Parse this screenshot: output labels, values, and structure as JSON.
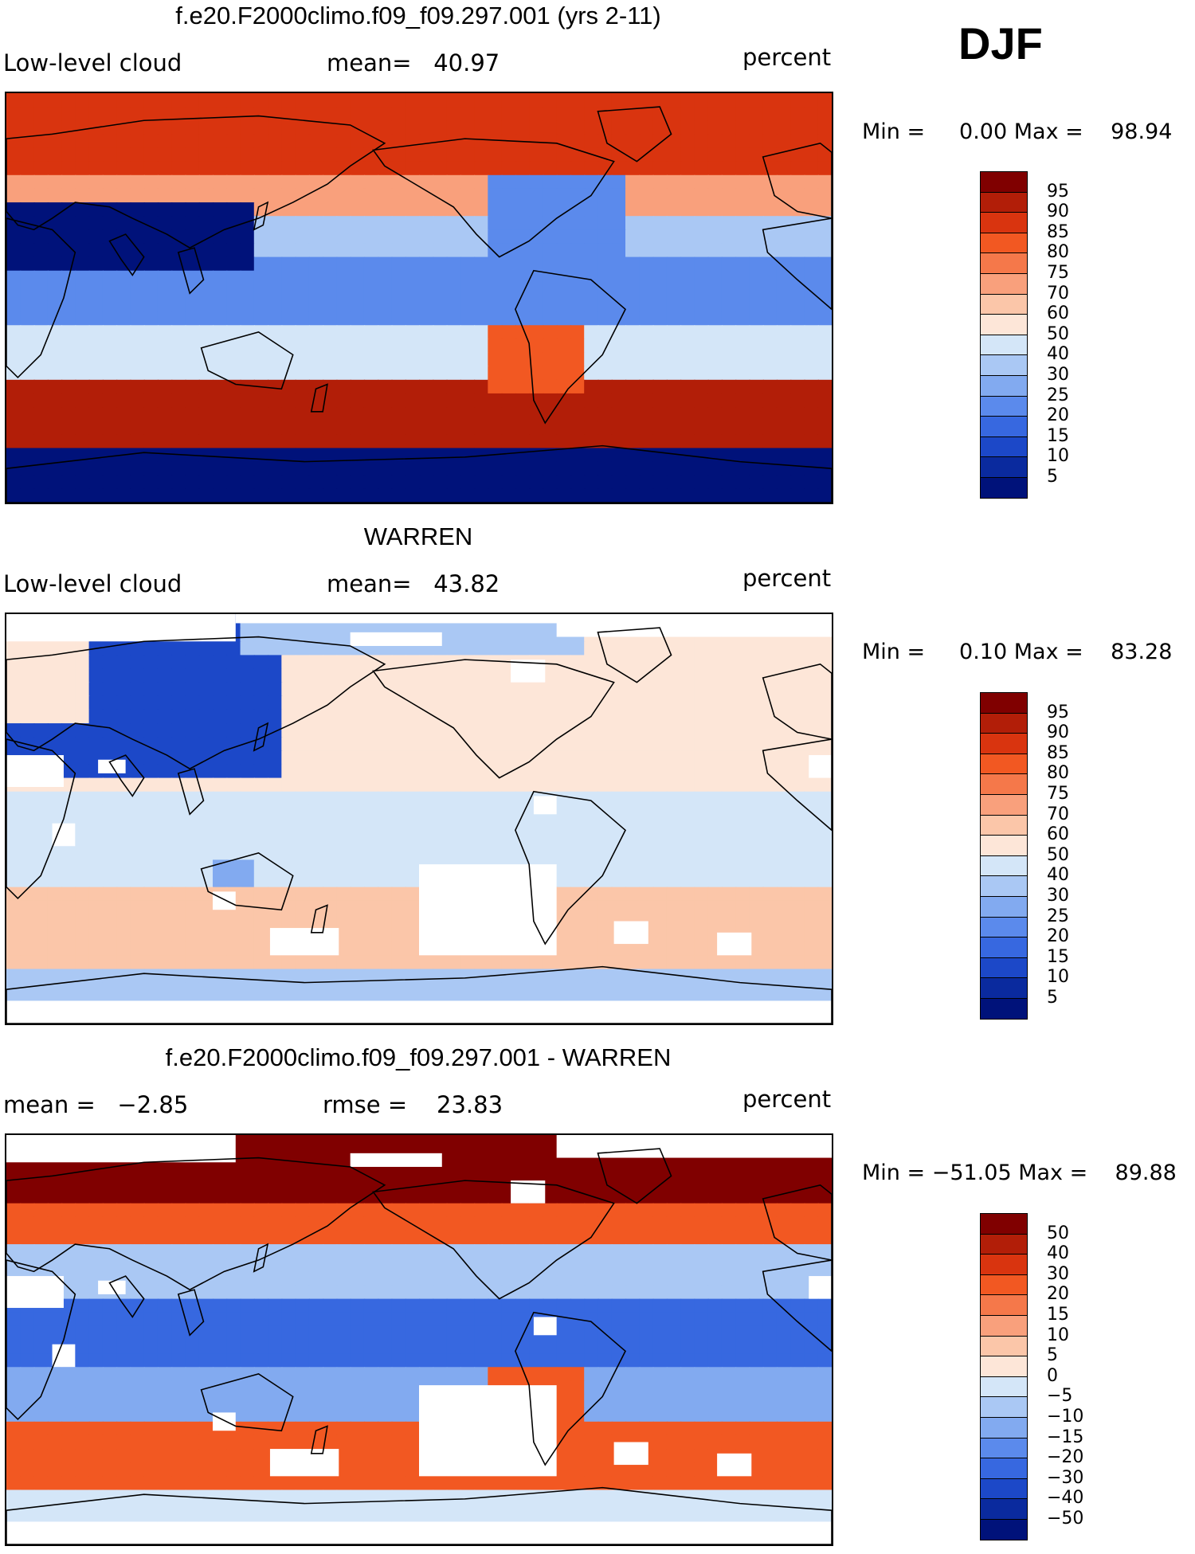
{
  "season": "DJF",
  "panels": [
    {
      "title": "f.e20.F2000climo.f09_f09.297.001 (yrs 2-11)",
      "left": "Low-level cloud",
      "center": "mean=   40.97",
      "right": "percent",
      "stats": "Min =     0.00 Max =    98.94",
      "colorbar": {
        "labels": [
          "95",
          "90",
          "85",
          "80",
          "75",
          "70",
          "60",
          "50",
          "40",
          "30",
          "25",
          "20",
          "15",
          "10",
          "5"
        ],
        "colors": [
          "#800000",
          "#b21e08",
          "#d9340f",
          "#f25822",
          "#f5784a",
          "#f9a07c",
          "#fbc6a9",
          "#fde6d8",
          "#d4e6f8",
          "#aac8f4",
          "#82aaf0",
          "#5b8aec",
          "#3768e0",
          "#1c48c8",
          "#0a2a9e",
          "#00127a"
        ]
      },
      "map_field": "model"
    },
    {
      "title": "WARREN",
      "left": "Low-level cloud",
      "center": "mean=   43.82",
      "right": "percent",
      "stats": "Min =     0.10 Max =    83.28",
      "colorbar": {
        "labels": [
          "95",
          "90",
          "85",
          "80",
          "75",
          "70",
          "60",
          "50",
          "40",
          "30",
          "25",
          "20",
          "15",
          "10",
          "5"
        ],
        "colors": [
          "#800000",
          "#b21e08",
          "#d9340f",
          "#f25822",
          "#f5784a",
          "#f9a07c",
          "#fbc6a9",
          "#fde6d8",
          "#d4e6f8",
          "#aac8f4",
          "#82aaf0",
          "#5b8aec",
          "#3768e0",
          "#1c48c8",
          "#0a2a9e",
          "#00127a"
        ]
      },
      "map_field": "obs"
    },
    {
      "title": "f.e20.F2000climo.f09_f09.297.001 - WARREN",
      "left": "mean =   −2.85",
      "center": "rmse =    23.83",
      "right": "percent",
      "stats": "Min = −51.05 Max =    89.88",
      "colorbar": {
        "labels": [
          "50",
          "40",
          "30",
          "20",
          "15",
          "10",
          "5",
          "0",
          "−5",
          "−10",
          "−15",
          "−20",
          "−30",
          "−40",
          "−50"
        ],
        "colors": [
          "#800000",
          "#b21e08",
          "#d9340f",
          "#f25822",
          "#f5784a",
          "#f9a07c",
          "#fbc6a9",
          "#fde6d8",
          "#d4e6f8",
          "#aac8f4",
          "#82aaf0",
          "#5b8aec",
          "#3768e0",
          "#1c48c8",
          "#0a2a9e",
          "#00127a"
        ]
      },
      "map_field": "diff"
    }
  ]
}
